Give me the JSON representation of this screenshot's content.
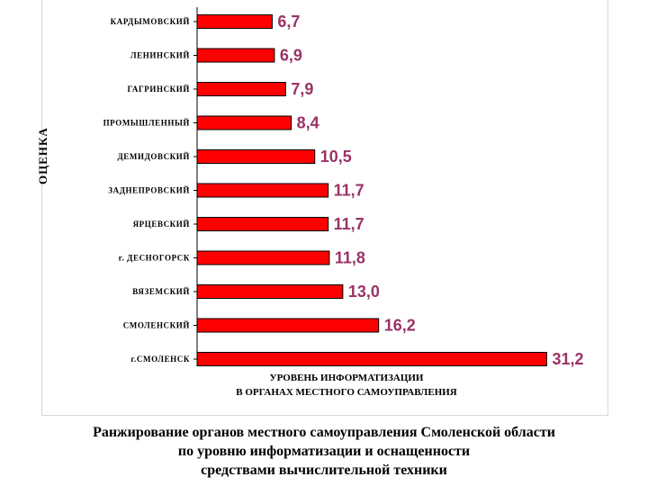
{
  "chart_data": {
    "type": "bar",
    "orientation": "horizontal",
    "categories": [
      "КАРДЫМОВСКИЙ",
      "ЛЕНИНСКИЙ",
      "ГАГРИНСКИЙ",
      "ПРОМЫШЛЕННЫЙ",
      "ДЕМИДОВСКИЙ",
      "ЗАДНЕПРОВСКИЙ",
      "ЯРЦЕВСКИЙ",
      "г. ДЕСНОГОРСК",
      "ВЯЗЕМСКИЙ",
      "СМОЛЕНСКИЙ",
      "г.СМОЛЕНСК"
    ],
    "values": [
      6.7,
      6.9,
      7.9,
      8.4,
      10.5,
      11.7,
      11.7,
      11.8,
      13.0,
      16.2,
      31.2
    ],
    "value_labels": [
      "6,7",
      "6,9",
      "7,9",
      "8,4",
      "10,5",
      "11,7",
      "11,7",
      "11,8",
      "13,0",
      "16,2",
      "31,2"
    ],
    "xlim": [
      0,
      35
    ],
    "ylabel": "ОЦЕНКА",
    "xlabel_lines": [
      "УРОВЕНЬ ИНФОРМАТИЗАЦИИ",
      "В ОРГАНАХ МЕСТНОГО САМОУПРАВЛЕНИЯ"
    ],
    "grid": false,
    "bar_color": "#ff0000",
    "label_color": "#993366"
  },
  "caption": {
    "line1": "Ранжирование органов местного самоуправления Смоленской области",
    "line2": "по уровню информатизации и оснащенности",
    "line3": "средствами вычислительной техники"
  }
}
